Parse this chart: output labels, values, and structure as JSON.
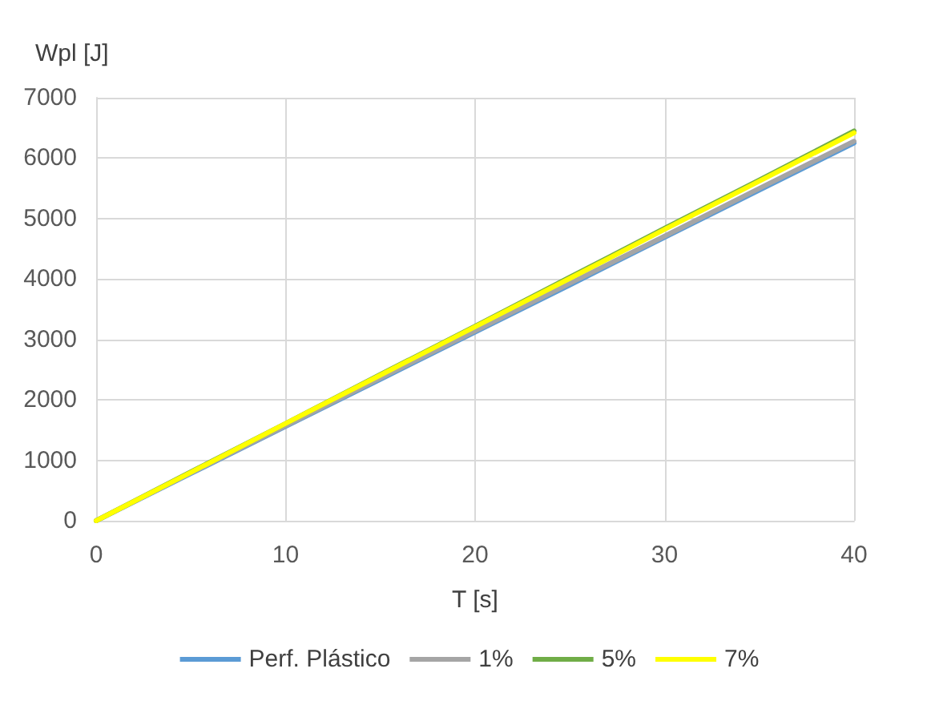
{
  "chart_data": {
    "type": "line",
    "xlabel": "T [s]",
    "ylabel": "Wpl [J]",
    "x": [
      0,
      5,
      10,
      15,
      20,
      25,
      30,
      35,
      40
    ],
    "series": [
      {
        "name": "Perf. Plástico",
        "color": "#5b9bd5",
        "values": [
          0,
          780,
          1560,
          2340,
          3120,
          3900,
          4690,
          5470,
          6250
        ]
      },
      {
        "name": "1%",
        "color": "#a5a5a5",
        "values": [
          0,
          790,
          1570,
          2360,
          3140,
          3930,
          4710,
          5500,
          6280
        ]
      },
      {
        "name": "5%",
        "color": "#70ad47",
        "values": [
          0,
          810,
          1610,
          2420,
          3220,
          4030,
          4840,
          5640,
          6450
        ]
      },
      {
        "name": "7%",
        "color": "#ffff00",
        "values": [
          0,
          800,
          1610,
          2410,
          3210,
          4010,
          4820,
          5620,
          6420
        ]
      }
    ],
    "xlim": [
      0,
      40
    ],
    "xticks": [
      0,
      10,
      20,
      30,
      40
    ],
    "ylim": [
      0,
      7000
    ],
    "yticks": [
      0,
      1000,
      2000,
      3000,
      4000,
      5000,
      6000,
      7000
    ],
    "grid": true,
    "legend": "bottom",
    "marker": "none",
    "line_style": "solid"
  }
}
